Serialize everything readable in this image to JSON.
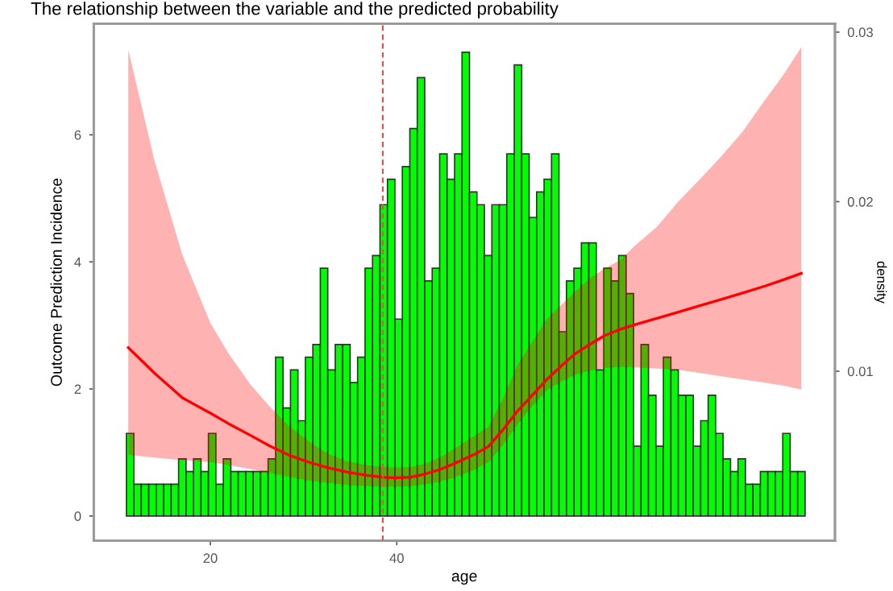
{
  "chart_data": {
    "type": "histogram",
    "title": "The relationship between the variable and the predicted probability",
    "xlabel": "age",
    "ylabel": "Outcome Prediction Incidence",
    "y2label": "density",
    "xlim": [
      7.5,
      87
    ],
    "xticks": [
      20,
      40
    ],
    "ylim": [
      -0.39,
      7.75
    ],
    "yticks": [
      0,
      2,
      4,
      6
    ],
    "y2lim": [
      0,
      0.0305
    ],
    "y2ticks": [
      0.01,
      0.02,
      0.03
    ],
    "grid": false,
    "legend": false,
    "ref_lines": [
      {
        "axis": "x",
        "value": 38.5,
        "color": "#d9534f",
        "line_style": "dashed"
      }
    ],
    "series": [
      {
        "type": "histogram",
        "color": "#00ff00",
        "bins": [
          11,
          11.8,
          12.6,
          13.4,
          14.2,
          15,
          15.8,
          16.6,
          17.4,
          18.2,
          19,
          19.8,
          20.6,
          21.4,
          22.2,
          23,
          23.8,
          24.6,
          25.4,
          26.2,
          27,
          27.8,
          28.6,
          29.4,
          30.2,
          31,
          31.8,
          32.6,
          33.4,
          34.2,
          35,
          35.8,
          36.6,
          37.4,
          38.2,
          39,
          39.8,
          40.6,
          41.4,
          42.2,
          43,
          43.8,
          44.6,
          45.4,
          46.2,
          47,
          47.8,
          48.6,
          49.4,
          50.2,
          51,
          51.8,
          52.6,
          53.4,
          54.2,
          55,
          55.8,
          56.6,
          57.4,
          58.2,
          59,
          59.8,
          60.6,
          61.4,
          62.2,
          63,
          63.8,
          64.6,
          65.4,
          66.2,
          67,
          67.8,
          68.6,
          69.4,
          70.2,
          71,
          71.8,
          72.6,
          73.4,
          74.2,
          75,
          75.8,
          76.6,
          77.4,
          78.2,
          79,
          79.8,
          80.6,
          81.4,
          82.2,
          83,
          83.8
        ],
        "values": [
          1.3,
          0.5,
          0.5,
          0.5,
          0.5,
          0.5,
          0.5,
          0.9,
          0.7,
          0.9,
          0.7,
          1.3,
          0.5,
          0.9,
          0.7,
          0.7,
          0.7,
          0.7,
          0.7,
          0.9,
          2.5,
          1.7,
          2.3,
          1.5,
          2.5,
          2.7,
          3.9,
          2.3,
          2.7,
          2.7,
          2.1,
          2.5,
          3.9,
          4.1,
          4.9,
          5.3,
          3.1,
          5.5,
          6.1,
          6.9,
          3.7,
          3.9,
          5.7,
          5.3,
          5.7,
          7.3,
          5.1,
          4.9,
          4.1,
          4.9,
          4.9,
          5.7,
          7.1,
          5.7,
          4.7,
          5.1,
          5.3,
          5.7,
          2.9,
          3.7,
          3.9,
          4.3,
          4.3,
          2.3,
          3.9,
          3.7,
          4.1,
          3.5,
          1.1,
          2.7,
          1.9,
          1.1,
          2.5,
          2.3,
          1.9,
          1.9,
          1.1,
          1.5,
          1.9,
          1.3,
          0.9,
          0.7,
          0.9,
          0.5,
          0.5,
          0.7,
          0.7,
          0.7,
          1.3,
          0.7,
          0.7
        ]
      },
      {
        "type": "line",
        "color": "#ff0000",
        "x": [
          11.2,
          14,
          17,
          20,
          22,
          24.3,
          26.4,
          28.4,
          30.5,
          32.6,
          34.7,
          36.8,
          38.5,
          39.9,
          41.5,
          43,
          44.6,
          46.1,
          48.2,
          49.8,
          51.4,
          53,
          54.6,
          56.1,
          57.7,
          59.2,
          60.8,
          62.3,
          64,
          65.5,
          67.9,
          70.2,
          72.5,
          74.8,
          77.1,
          79.5,
          81.5,
          83.4
        ],
        "values": [
          2.65,
          2.25,
          1.86,
          1.62,
          1.45,
          1.27,
          1.1,
          0.96,
          0.85,
          0.76,
          0.69,
          0.64,
          0.61,
          0.6,
          0.61,
          0.66,
          0.73,
          0.82,
          0.96,
          1.09,
          1.36,
          1.66,
          1.91,
          2.15,
          2.37,
          2.56,
          2.71,
          2.84,
          2.94,
          3.01,
          3.11,
          3.21,
          3.31,
          3.41,
          3.51,
          3.62,
          3.72,
          3.82
        ],
        "lower": [
          0.96,
          0.92,
          0.88,
          0.85,
          0.8,
          0.74,
          0.68,
          0.62,
          0.56,
          0.52,
          0.49,
          0.47,
          0.46,
          0.46,
          0.47,
          0.5,
          0.54,
          0.6,
          0.72,
          0.84,
          1.12,
          1.45,
          1.74,
          1.98,
          2.12,
          2.23,
          2.29,
          2.33,
          2.35,
          2.34,
          2.32,
          2.3,
          2.25,
          2.2,
          2.15,
          2.1,
          2.05,
          1.99
        ],
        "upper": [
          7.34,
          5.6,
          4.11,
          3.04,
          2.55,
          2.07,
          1.72,
          1.42,
          1.18,
          0.98,
          0.86,
          0.8,
          0.77,
          0.76,
          0.77,
          0.82,
          0.92,
          1.05,
          1.25,
          1.4,
          1.85,
          2.39,
          2.75,
          3.1,
          3.33,
          3.54,
          3.75,
          3.9,
          4.03,
          4.25,
          4.55,
          4.95,
          5.3,
          5.66,
          6.05,
          6.55,
          6.95,
          7.38
        ]
      }
    ]
  }
}
